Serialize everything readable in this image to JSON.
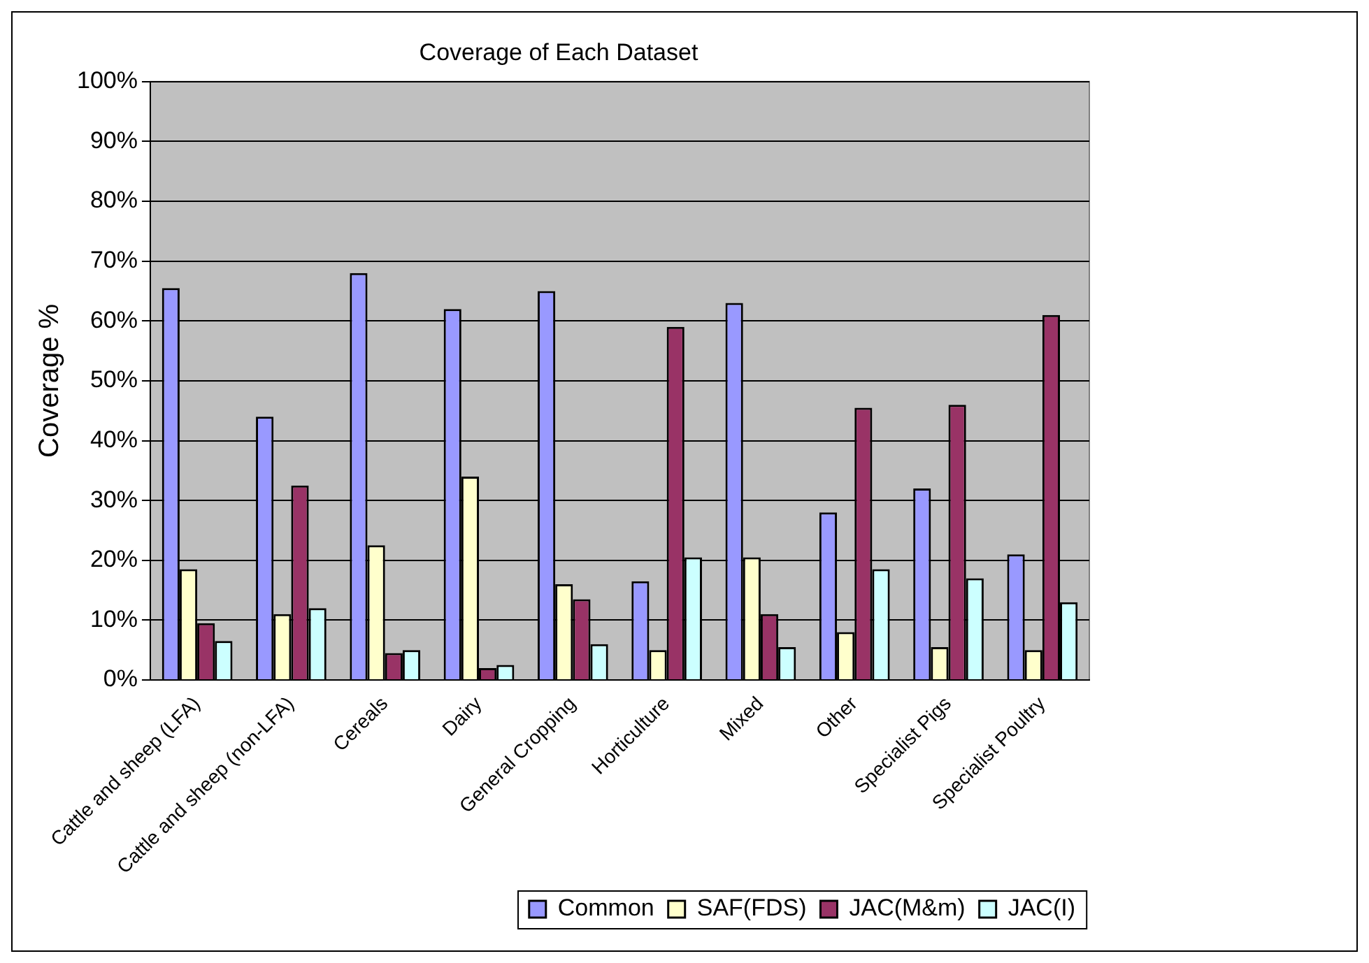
{
  "chart_data": {
    "type": "bar",
    "title": "Coverage of Each Dataset",
    "ylabel": "Coverage %",
    "categories": [
      "Cattle and sheep (LFA)",
      "Cattle and sheep (non-LFA)",
      "Cereals",
      "Dairy",
      "General Cropping",
      "Horticulture",
      "Mixed",
      "Other",
      "Specialist Pigs",
      "Specialist Poultry"
    ],
    "series": [
      {
        "name": "Common",
        "color": "#9999ff",
        "values": [
          65.5,
          44,
          68,
          62,
          65,
          16.5,
          63,
          28,
          32,
          21
        ]
      },
      {
        "name": "SAF(FDS)",
        "color": "#ffffcc",
        "values": [
          18.5,
          11,
          22.5,
          34,
          16,
          5,
          20.5,
          8,
          5.5,
          5
        ]
      },
      {
        "name": "JAC(M&m)",
        "color": "#993366",
        "values": [
          9.5,
          32.5,
          4.5,
          2,
          13.5,
          59,
          11,
          45.5,
          46,
          61
        ]
      },
      {
        "name": "JAC(I)",
        "color": "#ccffff",
        "values": [
          6.5,
          12,
          5,
          2.5,
          6,
          20.5,
          5.5,
          18.5,
          17,
          13
        ]
      }
    ],
    "ylim": [
      0,
      100
    ],
    "yticks": [
      {
        "value": 0,
        "label": "0%"
      },
      {
        "value": 10,
        "label": "10%"
      },
      {
        "value": 20,
        "label": "20%"
      },
      {
        "value": 30,
        "label": "30%"
      },
      {
        "value": 40,
        "label": "40%"
      },
      {
        "value": 50,
        "label": "50%"
      },
      {
        "value": 60,
        "label": "60%"
      },
      {
        "value": 70,
        "label": "70%"
      },
      {
        "value": 80,
        "label": "80%"
      },
      {
        "value": 90,
        "label": "90%"
      },
      {
        "value": 100,
        "label": "100%"
      }
    ],
    "grid": "y",
    "legend": "bottom"
  }
}
